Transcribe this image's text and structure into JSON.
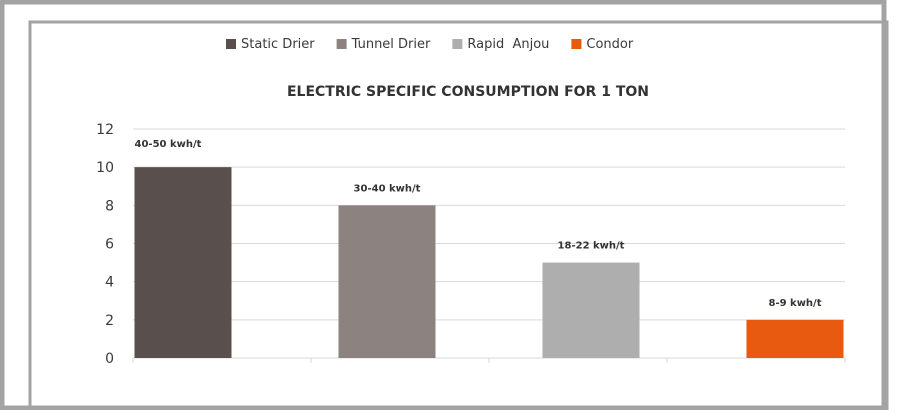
{
  "chart_data": {
    "type": "bar",
    "title": "ELECTRIC SPECIFIC CONSUMPTION FOR 1 TON",
    "xlabel": "",
    "ylabel": "",
    "ylim": [
      0,
      12
    ],
    "yticks": [
      0,
      2,
      4,
      6,
      8,
      10,
      12
    ],
    "grid": true,
    "legend_position": "top",
    "series": [
      {
        "name": "Static Drier",
        "values": [
          10
        ],
        "data_label": "40-50 kwh/t",
        "color": "#594f4d"
      },
      {
        "name": "Tunnel Drier",
        "values": [
          8
        ],
        "data_label": "30-40 kwh/t",
        "color": "#8c8380"
      },
      {
        "name": "Rapid  Anjou",
        "values": [
          5
        ],
        "data_label": "18-22 kwh/t",
        "color": "#aeaeae"
      },
      {
        "name": "Condor",
        "values": [
          2
        ],
        "data_label": "8-9 kwh/t",
        "color": "#e85a10"
      }
    ]
  },
  "colors": {
    "border": "#a3a3a3",
    "grid": "#d9d9d9",
    "text": "#3a3a3a"
  }
}
